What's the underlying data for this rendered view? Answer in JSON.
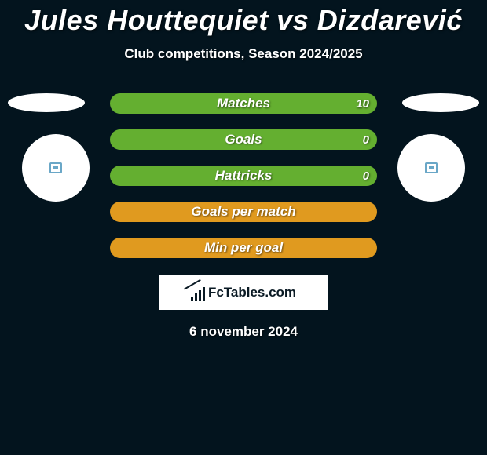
{
  "title": "Jules Houttequiet vs Dizdarević",
  "subtitle": "Club competitions, Season 2024/2025",
  "colors": {
    "background": "#03141e",
    "bar_green": "#64af30",
    "bar_orange": "#e09a1f",
    "brand_bg": "#ffffff",
    "brand_fg": "#0a1a24"
  },
  "bars": [
    {
      "label": "Matches",
      "value": "10",
      "style": "green"
    },
    {
      "label": "Goals",
      "value": "0",
      "style": "green"
    },
    {
      "label": "Hattricks",
      "value": "0",
      "style": "green"
    },
    {
      "label": "Goals per match",
      "value": "",
      "style": "orange"
    },
    {
      "label": "Min per goal",
      "value": "",
      "style": "orange"
    }
  ],
  "brand": "FcTables.com",
  "date": "6 november 2024"
}
